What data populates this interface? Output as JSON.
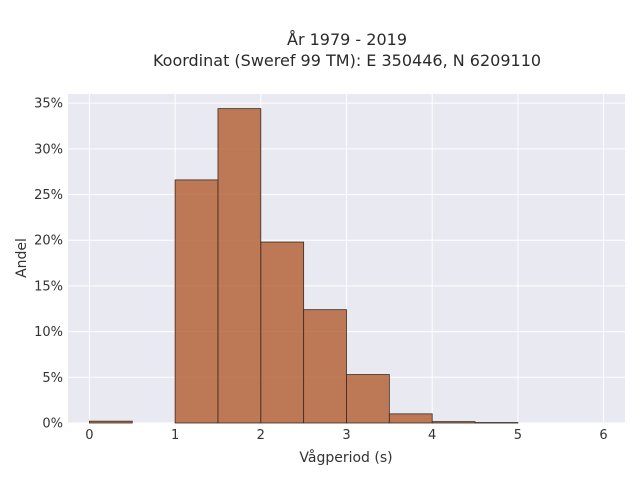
{
  "chart_data": {
    "type": "bar",
    "title_lines": [
      "År 1979 - 2019",
      "Koordinat (Sweref 99 TM): E 350446, N 6209110"
    ],
    "xlabel": "Vågperiod (s)",
    "ylabel": "Andel",
    "xlim": [
      -0.25,
      6.25
    ],
    "ylim": [
      0,
      36
    ],
    "x_ticks": [
      0,
      1,
      2,
      3,
      4,
      5,
      6
    ],
    "y_ticks": [
      0,
      5,
      10,
      15,
      20,
      25,
      30,
      35
    ],
    "y_tick_labels": [
      "0%",
      "5%",
      "10%",
      "15%",
      "20%",
      "25%",
      "30%",
      "35%"
    ],
    "bin_width": 0.5,
    "bins": [
      {
        "x0": 0.0,
        "x1": 0.5,
        "value": 0.2
      },
      {
        "x0": 1.0,
        "x1": 1.5,
        "value": 26.6
      },
      {
        "x0": 1.5,
        "x1": 2.0,
        "value": 34.4
      },
      {
        "x0": 2.0,
        "x1": 2.5,
        "value": 19.8
      },
      {
        "x0": 2.5,
        "x1": 3.0,
        "value": 12.4
      },
      {
        "x0": 3.0,
        "x1": 3.5,
        "value": 5.3
      },
      {
        "x0": 3.5,
        "x1": 4.0,
        "value": 1.0
      },
      {
        "x0": 4.0,
        "x1": 4.5,
        "value": 0.15
      },
      {
        "x0": 4.5,
        "x1": 5.0,
        "value": 0.05
      }
    ],
    "grid": true,
    "colors": {
      "bar": "#b5643a",
      "background": "#e9e9f1"
    }
  }
}
